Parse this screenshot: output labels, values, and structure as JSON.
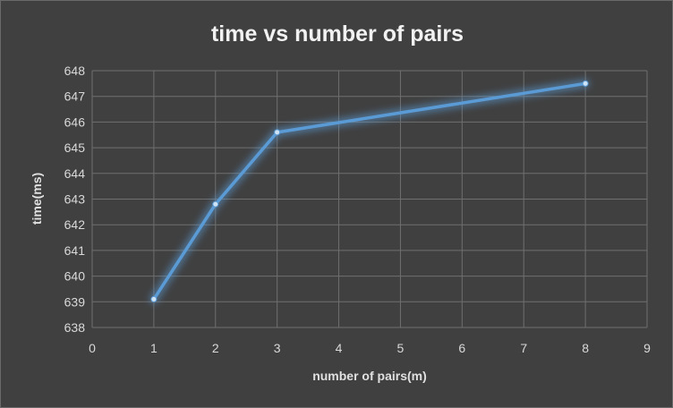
{
  "chart_data": {
    "type": "line",
    "title": "time vs number of pairs",
    "xlabel": "number of pairs(m)",
    "ylabel": "time(ms)",
    "xlim": [
      0,
      9
    ],
    "ylim": [
      638,
      648
    ],
    "xticks": [
      0,
      1,
      2,
      3,
      4,
      5,
      6,
      7,
      8,
      9
    ],
    "yticks": [
      638,
      639,
      640,
      641,
      642,
      643,
      644,
      645,
      646,
      647,
      648
    ],
    "grid": true,
    "legend": "none",
    "series": [
      {
        "color": "#5b9bd5",
        "x": [
          1,
          2,
          3,
          8
        ],
        "y": [
          639.1,
          642.8,
          645.6,
          647.5
        ]
      }
    ]
  }
}
